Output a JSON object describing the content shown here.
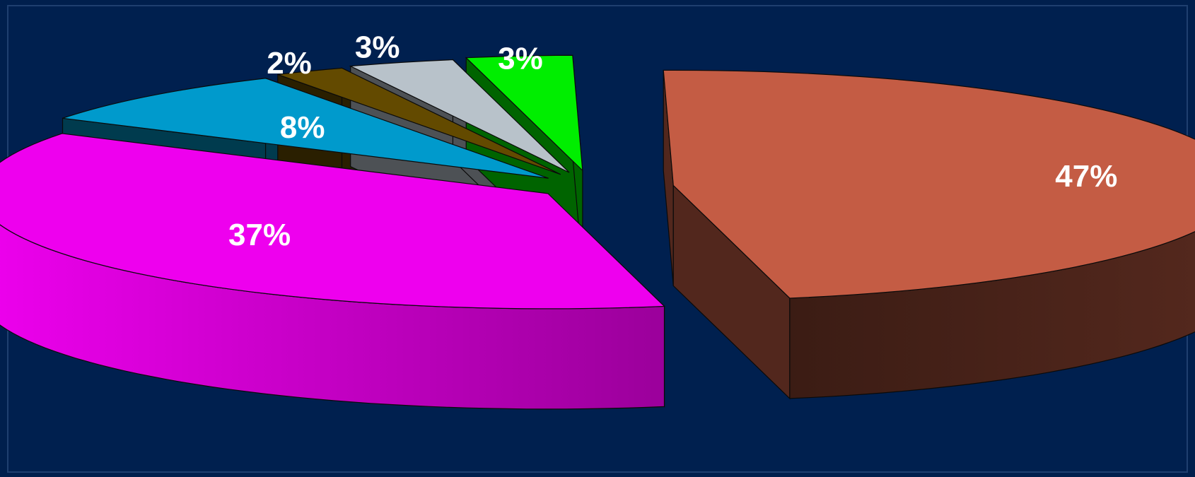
{
  "colors": {
    "background": "#001f4d"
  },
  "chart_data": {
    "type": "pie",
    "style": "3d-exploded",
    "title": "",
    "slices": [
      {
        "label": "47%",
        "value": 47,
        "color": "#c45c44"
      },
      {
        "label": "37%",
        "value": 37,
        "color": "#ee00ee"
      },
      {
        "label": "8%",
        "value": 8,
        "color": "#009acc"
      },
      {
        "label": "2%",
        "value": 2,
        "color": "#634a00"
      },
      {
        "label": "3%",
        "value": 3,
        "color": "#b8c2ca"
      },
      {
        "label": "3%",
        "value": 3,
        "color": "#00ee00"
      }
    ],
    "legend": "none",
    "grid": false
  }
}
